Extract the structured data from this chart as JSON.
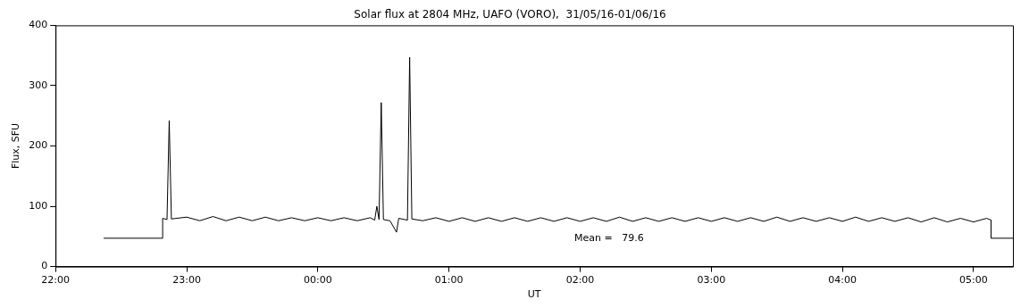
{
  "chart_data": {
    "type": "line",
    "title": "Solar flux at 2804 MHz, UAFO (VORO),  31/05/16-01/06/16",
    "xlabel": "UT",
    "ylabel": "Flux, SFU",
    "annotations": [
      "Mean =   79.6"
    ],
    "color": "#000000",
    "marker": "none",
    "grid": false,
    "legend": false,
    "xlim": [
      "--05-31T22:00",
      "--06-01T05:18"
    ],
    "ylim": [
      0,
      400
    ],
    "xticks": [
      {
        "value": "--05-31T22:00",
        "label": "22:00"
      },
      {
        "value": "--05-31T23:00",
        "label": "23:00"
      },
      {
        "value": "--06-01T00:00",
        "label": "00:00"
      },
      {
        "value": "--06-01T01:00",
        "label": "01:00"
      },
      {
        "value": "--06-01T02:00",
        "label": "02:00"
      },
      {
        "value": "--06-01T03:00",
        "label": "03:00"
      },
      {
        "value": "--06-01T04:00",
        "label": "04:00"
      },
      {
        "value": "--06-01T05:00",
        "label": "05:00"
      }
    ],
    "yticks": [
      0,
      100,
      200,
      300,
      400
    ],
    "x": [
      "--05-31T22:22",
      "--05-31T22:49",
      "--05-31T22:49",
      "--05-31T22:51",
      "--05-31T22:52",
      "--05-31T22:53",
      "--05-31T23:00",
      "--05-31T23:06",
      "--05-31T23:12",
      "--05-31T23:18",
      "--05-31T23:24",
      "--05-31T23:30",
      "--05-31T23:36",
      "--05-31T23:42",
      "--05-31T23:48",
      "--05-31T23:54",
      "--06-01T00:00",
      "--06-01T00:06",
      "--06-01T00:12",
      "--06-01T00:18",
      "--06-01T00:24",
      "--06-01T00:26",
      "--06-01T00:27",
      "--06-01T00:28",
      "--06-01T00:29",
      "--06-01T00:30",
      "--06-01T00:33",
      "--06-01T00:36",
      "--06-01T00:37",
      "--06-01T00:41",
      "--06-01T00:42",
      "--06-01T00:43",
      "--06-01T00:48",
      "--06-01T00:54",
      "--06-01T01:00",
      "--06-01T01:06",
      "--06-01T01:12",
      "--06-01T01:18",
      "--06-01T01:24",
      "--06-01T01:30",
      "--06-01T01:36",
      "--06-01T01:42",
      "--06-01T01:48",
      "--06-01T01:54",
      "--06-01T02:00",
      "--06-01T02:06",
      "--06-01T02:12",
      "--06-01T02:18",
      "--06-01T02:24",
      "--06-01T02:30",
      "--06-01T02:36",
      "--06-01T02:42",
      "--06-01T02:48",
      "--06-01T02:54",
      "--06-01T03:00",
      "--06-01T03:06",
      "--06-01T03:12",
      "--06-01T03:18",
      "--06-01T03:24",
      "--06-01T03:30",
      "--06-01T03:36",
      "--06-01T03:42",
      "--06-01T03:48",
      "--06-01T03:54",
      "--06-01T04:00",
      "--06-01T04:06",
      "--06-01T04:12",
      "--06-01T04:18",
      "--06-01T04:24",
      "--06-01T04:30",
      "--06-01T04:36",
      "--06-01T04:42",
      "--06-01T04:48",
      "--06-01T04:54",
      "--06-01T05:00",
      "--06-01T05:06",
      "--06-01T05:08",
      "--06-01T05:08",
      "--06-01T05:18"
    ],
    "values": [
      47,
      47,
      80,
      78,
      242,
      79,
      82,
      76,
      83,
      76,
      82,
      76,
      82,
      76,
      81,
      76,
      81,
      76,
      81,
      76,
      81,
      77,
      100,
      78,
      272,
      78,
      76,
      57,
      80,
      77,
      347,
      79,
      76,
      81,
      75,
      81,
      75,
      81,
      75,
      81,
      75,
      81,
      75,
      81,
      75,
      81,
      75,
      82,
      75,
      81,
      75,
      81,
      75,
      81,
      75,
      81,
      75,
      81,
      75,
      82,
      75,
      81,
      75,
      81,
      75,
      82,
      75,
      81,
      75,
      81,
      74,
      81,
      74,
      80,
      74,
      80,
      77,
      47,
      47
    ]
  }
}
